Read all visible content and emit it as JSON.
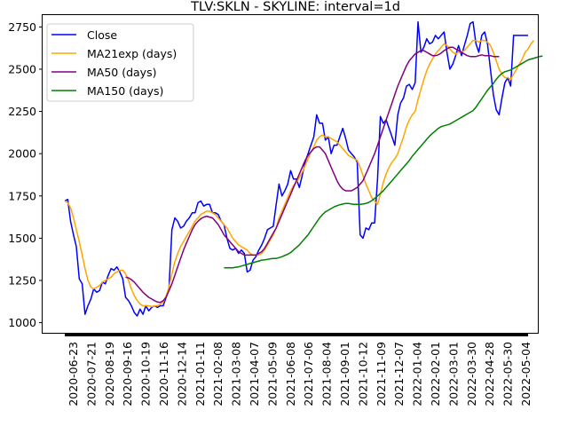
{
  "chart_data": {
    "type": "line",
    "title": "TLV:SKLN - SKYLINE: interval=1d",
    "xlabel": "",
    "ylabel": "",
    "ylim": [
      940,
      2820
    ],
    "grid": false,
    "legend_position": "top-left",
    "x_tick_labels": [
      "2020-06-23",
      "2020-07-21",
      "2020-08-19",
      "2020-09-16",
      "2020-10-19",
      "2020-11-16",
      "2020-12-14",
      "2021-01-11",
      "2021-02-08",
      "2021-03-08",
      "2021-04-07",
      "2021-05-09",
      "2021-06-08",
      "2021-07-06",
      "2021-08-04",
      "2021-09-01",
      "2021-10-12",
      "2021-11-09",
      "2021-12-07",
      "2022-01-04",
      "2022-02-01",
      "2022-03-01",
      "2022-03-30",
      "2022-04-28",
      "2022-05-30",
      "2022-05-04"
    ],
    "y_ticks": [
      1000,
      1250,
      1500,
      1750,
      2000,
      2250,
      2500,
      2750
    ],
    "y_tick_labels": [
      "1000",
      "1250",
      "1500",
      "1750",
      "2000",
      "2250",
      "2500",
      "2750"
    ],
    "series": [
      {
        "name": "Close",
        "color": "#0000ff",
        "start_index": 0,
        "values": [
          1720,
          1730,
          1600,
          1520,
          1450,
          1260,
          1230,
          1050,
          1100,
          1140,
          1200,
          1180,
          1190,
          1240,
          1230,
          1280,
          1320,
          1310,
          1330,
          1300,
          1260,
          1150,
          1130,
          1100,
          1060,
          1040,
          1080,
          1050,
          1100,
          1070,
          1090,
          1100,
          1090,
          1100,
          1100,
          1150,
          1200,
          1550,
          1620,
          1600,
          1560,
          1570,
          1600,
          1620,
          1650,
          1650,
          1710,
          1720,
          1690,
          1700,
          1700,
          1650,
          1650,
          1640,
          1600,
          1580,
          1500,
          1440,
          1430,
          1440,
          1410,
          1430,
          1410,
          1300,
          1310,
          1370,
          1390,
          1430,
          1460,
          1500,
          1550,
          1560,
          1570,
          1700,
          1820,
          1750,
          1780,
          1820,
          1900,
          1850,
          1850,
          1800,
          1870,
          1950,
          2000,
          2050,
          2100,
          2230,
          2180,
          2180,
          2080,
          2100,
          2000,
          2050,
          2050,
          2100,
          2150,
          2090,
          2020,
          2000,
          1980,
          1950,
          1520,
          1500,
          1560,
          1550,
          1590,
          1590,
          1850,
          2220,
          2180,
          2200,
          2150,
          2100,
          2050,
          2230,
          2300,
          2330,
          2400,
          2410,
          2380,
          2420,
          2780,
          2600,
          2630,
          2680,
          2650,
          2660,
          2700,
          2680,
          2700,
          2720,
          2600,
          2500,
          2530,
          2580,
          2640,
          2580,
          2640,
          2700,
          2770,
          2780,
          2650,
          2600,
          2700,
          2720,
          2650,
          2500,
          2350,
          2260,
          2230,
          2330,
          2420,
          2450,
          2400,
          2700,
          2700,
          2700,
          2700,
          2700,
          2700
        ]
      },
      {
        "name": "MA21exp (days)",
        "color": "#ffa500",
        "start_index": 0,
        "values": [
          1720,
          1710,
          1680,
          1620,
          1550,
          1480,
          1400,
          1320,
          1250,
          1210,
          1200,
          1210,
          1220,
          1240,
          1250,
          1260,
          1270,
          1290,
          1300,
          1310,
          1310,
          1290,
          1250,
          1200,
          1160,
          1130,
          1110,
          1100,
          1100,
          1100,
          1095,
          1100,
          1100,
          1110,
          1120,
          1160,
          1210,
          1290,
          1360,
          1410,
          1450,
          1480,
          1510,
          1540,
          1570,
          1600,
          1620,
          1640,
          1650,
          1660,
          1660,
          1650,
          1640,
          1620,
          1600,
          1580,
          1560,
          1530,
          1500,
          1480,
          1460,
          1450,
          1440,
          1430,
          1410,
          1400,
          1400,
          1400,
          1410,
          1430,
          1460,
          1490,
          1520,
          1560,
          1620,
          1660,
          1700,
          1740,
          1780,
          1810,
          1830,
          1860,
          1890,
          1930,
          1970,
          2010,
          2040,
          2080,
          2100,
          2110,
          2100,
          2100,
          2090,
          2080,
          2070,
          2050,
          2030,
          2010,
          1990,
          1980,
          1970,
          1960,
          1920,
          1870,
          1820,
          1780,
          1740,
          1720,
          1700,
          1760,
          1830,
          1880,
          1920,
          1950,
          1970,
          2000,
          2050,
          2100,
          2160,
          2200,
          2230,
          2250,
          2320,
          2380,
          2440,
          2490,
          2530,
          2560,
          2590,
          2610,
          2630,
          2650,
          2640,
          2620,
          2600,
          2590,
          2600,
          2600,
          2610,
          2630,
          2650,
          2670,
          2670,
          2660,
          2670,
          2670,
          2660,
          2640,
          2600,
          2550,
          2500,
          2470,
          2450,
          2450,
          2440,
          2470,
          2500,
          2530,
          2560,
          2600,
          2620,
          2650,
          2670
        ]
      },
      {
        "name": "MA50 (days)",
        "color": "#800080",
        "start_index": 21,
        "values": [
          1270,
          1265,
          1255,
          1240,
          1220,
          1200,
          1180,
          1165,
          1150,
          1140,
          1130,
          1122,
          1120,
          1130,
          1150,
          1190,
          1230,
          1280,
          1330,
          1380,
          1430,
          1470,
          1510,
          1550,
          1580,
          1600,
          1615,
          1625,
          1630,
          1625,
          1620,
          1600,
          1580,
          1550,
          1520,
          1500,
          1480,
          1460,
          1440,
          1420,
          1410,
          1400,
          1400,
          1400,
          1400,
          1400,
          1410,
          1420,
          1440,
          1470,
          1500,
          1530,
          1560,
          1600,
          1640,
          1680,
          1720,
          1760,
          1800,
          1840,
          1880,
          1920,
          1960,
          1990,
          2010,
          2030,
          2040,
          2040,
          2020,
          2000,
          1960,
          1920,
          1880,
          1840,
          1810,
          1790,
          1780,
          1780,
          1780,
          1790,
          1800,
          1820,
          1840,
          1880,
          1920,
          1960,
          2000,
          2050,
          2100,
          2150,
          2200,
          2250,
          2300,
          2350,
          2400,
          2440,
          2480,
          2520,
          2550,
          2570,
          2590,
          2600,
          2610,
          2610,
          2600,
          2590,
          2580,
          2580,
          2585,
          2595,
          2610,
          2620,
          2630,
          2630,
          2620,
          2610,
          2600,
          2590,
          2580,
          2575,
          2575,
          2575,
          2580,
          2585,
          2580,
          2580,
          2580,
          2575,
          2575,
          2575
        ]
      },
      {
        "name": "MA150 (days)",
        "color": "#008000",
        "start_index": 55,
        "values": [
          1325,
          1325,
          1325,
          1325,
          1328,
          1330,
          1335,
          1340,
          1345,
          1350,
          1355,
          1360,
          1365,
          1370,
          1372,
          1375,
          1378,
          1380,
          1380,
          1385,
          1390,
          1398,
          1405,
          1415,
          1430,
          1445,
          1460,
          1480,
          1500,
          1520,
          1545,
          1570,
          1595,
          1620,
          1640,
          1655,
          1665,
          1675,
          1685,
          1692,
          1698,
          1702,
          1705,
          1705,
          1702,
          1700,
          1700,
          1700,
          1702,
          1705,
          1712,
          1722,
          1735,
          1750,
          1765,
          1780,
          1800,
          1820,
          1840,
          1860,
          1880,
          1900,
          1920,
          1940,
          1960,
          1985,
          2005,
          2025,
          2045,
          2065,
          2085,
          2105,
          2120,
          2135,
          2150,
          2160,
          2165,
          2170,
          2175,
          2185,
          2195,
          2205,
          2215,
          2225,
          2235,
          2245,
          2255,
          2275,
          2300,
          2325,
          2350,
          2375,
          2395,
          2415,
          2440,
          2460,
          2475,
          2485,
          2490,
          2495,
          2505,
          2515,
          2525,
          2535,
          2545,
          2555,
          2560,
          2565,
          2570,
          2575,
          2578
        ]
      }
    ]
  }
}
